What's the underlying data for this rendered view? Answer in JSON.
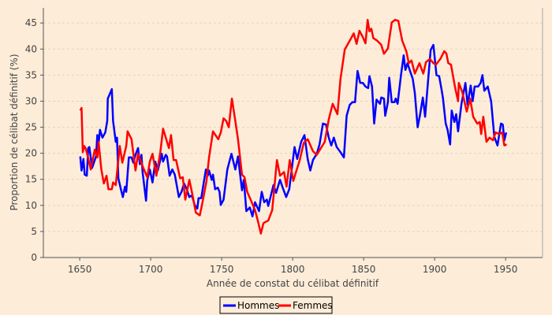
{
  "chart_data": {
    "type": "line",
    "title": "",
    "xlabel": "Année de constat du célibat définitif",
    "ylabel": "Proportion de célibat définitif (%)",
    "xlim": [
      1624.4,
      1976
    ],
    "ylim": [
      0,
      47.9
    ],
    "xticks": [
      1650,
      1700,
      1750,
      1800,
      1850,
      1900,
      1950
    ],
    "yticks": [
      0,
      5,
      10,
      15,
      20,
      25,
      30,
      35,
      40,
      45
    ],
    "grid": true,
    "legend_position": "bottom-center",
    "background": "#fcecd8",
    "series": [
      {
        "name": "Hommes",
        "color": "#0000ff",
        "points": [
          [
            1650.4,
            19.4
          ],
          [
            1651.3,
            16.7
          ],
          [
            1652.6,
            18.9
          ],
          [
            1653.5,
            15.9
          ],
          [
            1655,
            15.7
          ],
          [
            1656,
            21
          ],
          [
            1656.8,
            21.2
          ],
          [
            1658.7,
            17.2
          ],
          [
            1661.5,
            19.4
          ],
          [
            1662.4,
            23.5
          ],
          [
            1663.3,
            21.9
          ],
          [
            1664.3,
            24.5
          ],
          [
            1666,
            23
          ],
          [
            1668,
            24
          ],
          [
            1669.4,
            26.2
          ],
          [
            1669.8,
            30.5
          ],
          [
            1672.6,
            32.3
          ],
          [
            1673.5,
            26.2
          ],
          [
            1675.4,
            22.2
          ],
          [
            1676.3,
            23
          ],
          [
            1677.2,
            15.2
          ],
          [
            1679,
            13.1
          ],
          [
            1680.4,
            11.6
          ],
          [
            1681.9,
            13.6
          ],
          [
            1682.8,
            12.6
          ],
          [
            1684.6,
            19.2
          ],
          [
            1686.5,
            19.2
          ],
          [
            1687.8,
            18.2
          ],
          [
            1689.3,
            19.7
          ],
          [
            1691.1,
            21
          ],
          [
            1692.4,
            17.9
          ],
          [
            1693.5,
            19.7
          ],
          [
            1694.3,
            16.4
          ],
          [
            1696.7,
            10.9
          ],
          [
            1697.6,
            14.9
          ],
          [
            1699.4,
            16.9
          ],
          [
            1701.3,
            14.4
          ],
          [
            1703.2,
            18.4
          ],
          [
            1705,
            16.7
          ],
          [
            1707.8,
            19.9
          ],
          [
            1708.7,
            18.4
          ],
          [
            1710.6,
            19.7
          ],
          [
            1711.5,
            19.4
          ],
          [
            1713.3,
            15.7
          ],
          [
            1715.2,
            16.9
          ],
          [
            1717,
            15.9
          ],
          [
            1719.8,
            11.6
          ],
          [
            1721.7,
            12.6
          ],
          [
            1723.5,
            14.2
          ],
          [
            1725.4,
            13.1
          ],
          [
            1727.2,
            11.6
          ],
          [
            1729,
            11.9
          ],
          [
            1731,
            10.1
          ],
          [
            1732.8,
            9.4
          ],
          [
            1733.7,
            11.4
          ],
          [
            1735.6,
            11.4
          ],
          [
            1737.4,
            14.4
          ],
          [
            1738.9,
            16.9
          ],
          [
            1740.2,
            15.7
          ],
          [
            1741.1,
            16.7
          ],
          [
            1743,
            14.9
          ],
          [
            1743.9,
            15.9
          ],
          [
            1745.4,
            13.1
          ],
          [
            1747.2,
            13.4
          ],
          [
            1748.5,
            12.6
          ],
          [
            1749.4,
            10.1
          ],
          [
            1751.3,
            11.1
          ],
          [
            1754,
            16.9
          ],
          [
            1756.9,
            19.9
          ],
          [
            1759.6,
            16.9
          ],
          [
            1761.5,
            19.4
          ],
          [
            1764.3,
            12.9
          ],
          [
            1765.6,
            14.9
          ],
          [
            1767.4,
            8.9
          ],
          [
            1769.8,
            9.6
          ],
          [
            1771.7,
            7.9
          ],
          [
            1773.5,
            10.6
          ],
          [
            1776.3,
            8.9
          ],
          [
            1778.2,
            12.6
          ],
          [
            1780,
            10.6
          ],
          [
            1781.8,
            11.1
          ],
          [
            1782.8,
            9.9
          ],
          [
            1786.5,
            13.9
          ],
          [
            1788.3,
            12.4
          ],
          [
            1791.1,
            14.9
          ],
          [
            1793,
            13.4
          ],
          [
            1795.4,
            11.6
          ],
          [
            1797.6,
            13.1
          ],
          [
            1801.3,
            21.2
          ],
          [
            1803.2,
            18.9
          ],
          [
            1806,
            22.2
          ],
          [
            1808.3,
            23.5
          ],
          [
            1810.6,
            18.9
          ],
          [
            1812.4,
            16.7
          ],
          [
            1814.3,
            18.7
          ],
          [
            1817,
            19.9
          ],
          [
            1818.9,
            21.7
          ],
          [
            1821.3,
            25.7
          ],
          [
            1823.5,
            25.5
          ],
          [
            1825.4,
            23
          ],
          [
            1827.2,
            21.5
          ],
          [
            1829,
            23
          ],
          [
            1831,
            21.2
          ],
          [
            1833.7,
            20.2
          ],
          [
            1836.1,
            19.2
          ],
          [
            1838,
            27.2
          ],
          [
            1840.2,
            29.3
          ],
          [
            1842.1,
            29.8
          ],
          [
            1843.9,
            29.8
          ],
          [
            1845.7,
            35.8
          ],
          [
            1847.6,
            33.5
          ],
          [
            1849.4,
            33.5
          ],
          [
            1851.3,
            32.8
          ],
          [
            1853.2,
            32.5
          ],
          [
            1854.1,
            34.8
          ],
          [
            1855.9,
            32.8
          ],
          [
            1857.4,
            25.7
          ],
          [
            1859.1,
            30.3
          ],
          [
            1861.5,
            29.5
          ],
          [
            1862.4,
            30.7
          ],
          [
            1864.3,
            30.5
          ],
          [
            1865.2,
            27.2
          ],
          [
            1867.1,
            29.8
          ],
          [
            1868,
            34.5
          ],
          [
            1869.8,
            29.8
          ],
          [
            1871.7,
            29.8
          ],
          [
            1872.6,
            30.5
          ],
          [
            1873.9,
            29.5
          ],
          [
            1876.3,
            35
          ],
          [
            1878.2,
            38.8
          ],
          [
            1879.4,
            36
          ],
          [
            1880.9,
            37.3
          ],
          [
            1882.4,
            36
          ],
          [
            1884.6,
            34.3
          ],
          [
            1886.1,
            31.5
          ],
          [
            1888,
            25
          ],
          [
            1889.8,
            27.5
          ],
          [
            1891.7,
            30.7
          ],
          [
            1893.3,
            27
          ],
          [
            1895.4,
            34
          ],
          [
            1897.2,
            39.8
          ],
          [
            1899.1,
            40.8
          ],
          [
            1901.3,
            35
          ],
          [
            1903.2,
            34.8
          ],
          [
            1905,
            32
          ],
          [
            1905.9,
            30.5
          ],
          [
            1907.8,
            25.7
          ],
          [
            1909.1,
            24.5
          ],
          [
            1910.9,
            21.7
          ],
          [
            1912,
            28.2
          ],
          [
            1913.9,
            26
          ],
          [
            1915.2,
            27.5
          ],
          [
            1916.5,
            24.2
          ],
          [
            1918.9,
            29.5
          ],
          [
            1921.7,
            33.5
          ],
          [
            1923.2,
            29.3
          ],
          [
            1925.4,
            33
          ],
          [
            1926.8,
            30
          ],
          [
            1928.2,
            32.8
          ],
          [
            1930.6,
            32.8
          ],
          [
            1932.4,
            33.5
          ],
          [
            1933.7,
            35
          ],
          [
            1935,
            32
          ],
          [
            1937.4,
            32.8
          ],
          [
            1939.8,
            30
          ],
          [
            1942,
            23.2
          ],
          [
            1944.3,
            21.5
          ],
          [
            1946.7,
            25.7
          ],
          [
            1948,
            25.5
          ],
          [
            1949.1,
            22.5
          ],
          [
            1950.4,
            24
          ]
        ]
      },
      {
        "name": "Femmes",
        "color": "#ff0000",
        "points": [
          [
            1650.4,
            28.2
          ],
          [
            1651.3,
            28.7
          ],
          [
            1652.2,
            20.2
          ],
          [
            1653.2,
            21.4
          ],
          [
            1654.1,
            21
          ],
          [
            1655.9,
            19.2
          ],
          [
            1657.8,
            16.9
          ],
          [
            1660.6,
            20.7
          ],
          [
            1662.4,
            19.2
          ],
          [
            1663.3,
            22.2
          ],
          [
            1665.2,
            16.9
          ],
          [
            1667,
            14.2
          ],
          [
            1668.9,
            15.7
          ],
          [
            1670.2,
            13.1
          ],
          [
            1672.6,
            13.1
          ],
          [
            1673.5,
            14.4
          ],
          [
            1675.4,
            13.9
          ],
          [
            1678.2,
            21.4
          ],
          [
            1680,
            18.2
          ],
          [
            1682.8,
            21.4
          ],
          [
            1683.7,
            24.2
          ],
          [
            1686.5,
            22.7
          ],
          [
            1689.3,
            16.7
          ],
          [
            1691.1,
            19.9
          ],
          [
            1694.8,
            17.2
          ],
          [
            1697.6,
            15.4
          ],
          [
            1699.4,
            18.4
          ],
          [
            1701.3,
            19.9
          ],
          [
            1704,
            15.7
          ],
          [
            1706.8,
            20.2
          ],
          [
            1708.7,
            24.7
          ],
          [
            1710.6,
            23
          ],
          [
            1712.8,
            21
          ],
          [
            1714.3,
            23.5
          ],
          [
            1716.1,
            18.7
          ],
          [
            1717.9,
            18.7
          ],
          [
            1720.7,
            15.2
          ],
          [
            1722.6,
            15.4
          ],
          [
            1724.4,
            11.1
          ],
          [
            1727.2,
            14.9
          ],
          [
            1729,
            12.6
          ],
          [
            1731.8,
            8.6
          ],
          [
            1734.6,
            8.1
          ],
          [
            1736.5,
            10.6
          ],
          [
            1739.3,
            14.7
          ],
          [
            1741.1,
            19.2
          ],
          [
            1743.9,
            24.2
          ],
          [
            1747.6,
            22.7
          ],
          [
            1749.4,
            24
          ],
          [
            1751.3,
            26.7
          ],
          [
            1753.2,
            26.2
          ],
          [
            1755,
            25
          ],
          [
            1757.2,
            30.5
          ],
          [
            1759.6,
            26.2
          ],
          [
            1761.5,
            22.7
          ],
          [
            1764.3,
            15.9
          ],
          [
            1766.1,
            15.4
          ],
          [
            1768,
            12.6
          ],
          [
            1770.7,
            10.9
          ],
          [
            1773.5,
            9.1
          ],
          [
            1775.4,
            7.1
          ],
          [
            1777.6,
            4.6
          ],
          [
            1779.4,
            6.6
          ],
          [
            1782.8,
            7.1
          ],
          [
            1785.6,
            9.1
          ],
          [
            1788.9,
            18.7
          ],
          [
            1791.1,
            15.7
          ],
          [
            1793.9,
            16.4
          ],
          [
            1795.7,
            13.6
          ],
          [
            1797.9,
            18.7
          ],
          [
            1800.4,
            14.7
          ],
          [
            1805,
            18.7
          ],
          [
            1807.8,
            22
          ],
          [
            1810.6,
            22.7
          ],
          [
            1814.3,
            20.4
          ],
          [
            1817,
            19.7
          ],
          [
            1822.6,
            22.2
          ],
          [
            1825.4,
            26.5
          ],
          [
            1828.2,
            29.5
          ],
          [
            1831.5,
            27.5
          ],
          [
            1833.7,
            34.3
          ],
          [
            1836.7,
            39.9
          ],
          [
            1841,
            42
          ],
          [
            1843,
            43
          ],
          [
            1845,
            41
          ],
          [
            1847,
            43.5
          ],
          [
            1849.4,
            42.3
          ],
          [
            1851.3,
            41.1
          ],
          [
            1852.8,
            45.6
          ],
          [
            1854.1,
            43.4
          ],
          [
            1855.4,
            43.9
          ],
          [
            1856.8,
            42.1
          ],
          [
            1859.6,
            41.6
          ],
          [
            1862.4,
            40.8
          ],
          [
            1864.3,
            39.1
          ],
          [
            1867.1,
            40.1
          ],
          [
            1869.8,
            45.1
          ],
          [
            1872.1,
            45.6
          ],
          [
            1874.4,
            45.4
          ],
          [
            1877.2,
            41.6
          ],
          [
            1880,
            39.6
          ],
          [
            1881.8,
            37.3
          ],
          [
            1883.7,
            37.8
          ],
          [
            1886.1,
            35.3
          ],
          [
            1889.3,
            37.3
          ],
          [
            1892,
            35.3
          ],
          [
            1893.9,
            37.5
          ],
          [
            1896.7,
            38.1
          ],
          [
            1899.1,
            37.3
          ],
          [
            1900.9,
            37
          ],
          [
            1904,
            38.1
          ],
          [
            1906.8,
            39.6
          ],
          [
            1908.3,
            39.1
          ],
          [
            1909.6,
            37.3
          ],
          [
            1911.5,
            37
          ],
          [
            1914.3,
            32.8
          ],
          [
            1916.5,
            30
          ],
          [
            1917,
            33.5
          ],
          [
            1919.4,
            31.8
          ],
          [
            1922.6,
            28
          ],
          [
            1925,
            30.5
          ],
          [
            1927.2,
            27
          ],
          [
            1930,
            25.7
          ],
          [
            1931.8,
            26
          ],
          [
            1932.8,
            23.7
          ],
          [
            1934.3,
            27
          ],
          [
            1936.5,
            22.2
          ],
          [
            1938.7,
            23
          ],
          [
            1941.1,
            22.5
          ],
          [
            1942.9,
            24
          ],
          [
            1945.4,
            23.7
          ],
          [
            1947.6,
            24
          ],
          [
            1949.1,
            21.5
          ],
          [
            1950.7,
            21.7
          ]
        ]
      }
    ]
  }
}
